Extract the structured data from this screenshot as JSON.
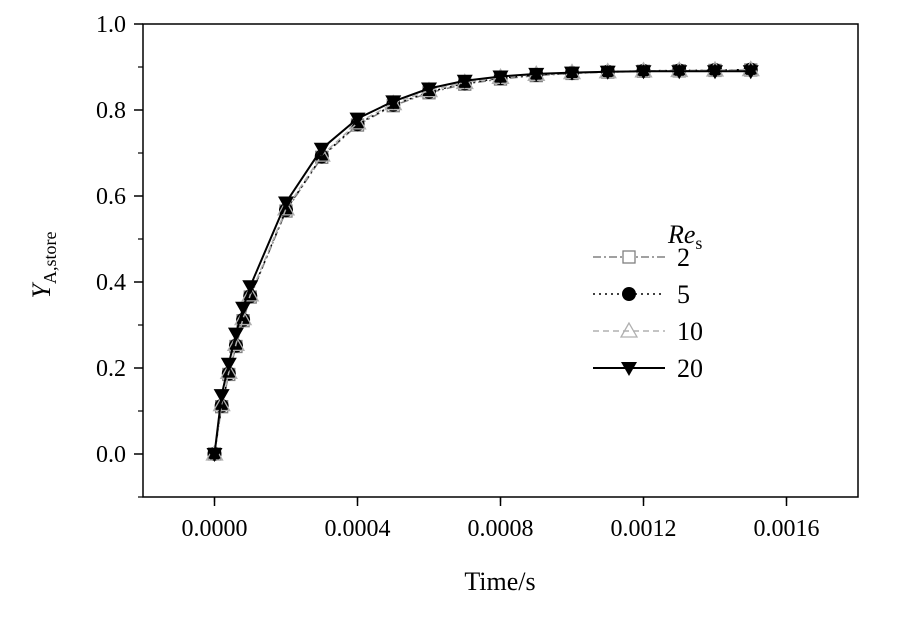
{
  "chart_data": {
    "type": "line",
    "title": "",
    "xlabel": "Time/s",
    "ylabel_main": "Y",
    "ylabel_sub": "A,store",
    "xlim": [
      -0.0002,
      0.0018
    ],
    "ylim": [
      -0.1,
      1.0
    ],
    "xticks": [
      0.0,
      0.0004,
      0.0008,
      0.0012,
      0.0016
    ],
    "xtick_labels": [
      "0.0000",
      "0.0004",
      "0.0008",
      "0.0012",
      "0.0016"
    ],
    "yticks": [
      0.0,
      0.2,
      0.4,
      0.6,
      0.8,
      1.0
    ],
    "ytick_labels": [
      "0.0",
      "0.2",
      "0.4",
      "0.6",
      "0.8",
      "1.0"
    ],
    "grid": false,
    "legend_title_main": "Re",
    "legend_title_sub": "s",
    "legend_position": "right",
    "x": [
      0,
      2e-05,
      4e-05,
      6e-05,
      8e-05,
      0.0001,
      0.0002,
      0.0003,
      0.0004,
      0.0005,
      0.0006,
      0.0007,
      0.0008,
      0.0009,
      0.001,
      0.0011,
      0.0012,
      0.0013,
      0.0014,
      0.0015
    ],
    "series": [
      {
        "name": "2",
        "marker": "square-open",
        "line": "dashdot",
        "color": "#808080",
        "values": [
          0,
          0.11,
          0.185,
          0.25,
          0.31,
          0.365,
          0.565,
          0.69,
          0.765,
          0.81,
          0.84,
          0.86,
          0.872,
          0.88,
          0.885,
          0.888,
          0.89,
          0.891,
          0.892,
          0.893
        ]
      },
      {
        "name": "5",
        "marker": "circle-filled",
        "line": "dotted",
        "color": "#000000",
        "values": [
          0,
          0.112,
          0.187,
          0.252,
          0.312,
          0.367,
          0.567,
          0.692,
          0.767,
          0.812,
          0.842,
          0.862,
          0.874,
          0.882,
          0.886,
          0.889,
          0.891,
          0.892,
          0.893,
          0.894
        ]
      },
      {
        "name": "10",
        "marker": "triangle-up-open",
        "line": "dashed",
        "color": "#b0b0b0",
        "values": [
          0,
          0.115,
          0.19,
          0.255,
          0.315,
          0.37,
          0.57,
          0.695,
          0.77,
          0.815,
          0.845,
          0.864,
          0.876,
          0.883,
          0.887,
          0.889,
          0.891,
          0.892,
          0.893,
          0.894
        ]
      },
      {
        "name": "20",
        "marker": "triangle-down-filled",
        "line": "solid",
        "color": "#000000",
        "values": [
          0,
          0.137,
          0.21,
          0.28,
          0.34,
          0.39,
          0.585,
          0.71,
          0.78,
          0.82,
          0.85,
          0.868,
          0.878,
          0.884,
          0.887,
          0.889,
          0.89,
          0.89,
          0.89,
          0.89
        ]
      }
    ]
  }
}
